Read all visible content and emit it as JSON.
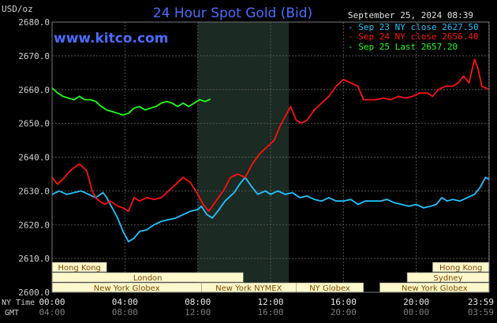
{
  "header": {
    "units": "USD/oz",
    "title": "24 Hour Spot Gold (Bid)",
    "timestamp": "September 25, 2024 08:39",
    "site": "www.kitco.com"
  },
  "colors": {
    "background": "#000000",
    "title": "#4a6cff",
    "site": "#4a6cff",
    "grid": "#555555",
    "shade": "#1b2a22",
    "axis_text": "#d0d0d0",
    "session_bar": "#fff8cc",
    "session_text": "#7a4a00",
    "series_sep23": "#22c3ff",
    "series_sep24": "#ff1010",
    "series_sep25": "#19ff19"
  },
  "footer": {
    "ny_time_label": "NY Time",
    "gmt_label": "GMT"
  },
  "chart_data": {
    "type": "line",
    "title": "24 Hour Spot Gold (Bid)",
    "ylabel": "USD/oz",
    "xlabel": "",
    "xlim": [
      0,
      24
    ],
    "ylim": [
      2600,
      2680
    ],
    "grid": true,
    "legend_position": "top-right",
    "shaded_interval": [
      8,
      13
    ],
    "y_ticks": [
      {
        "value": 2680,
        "label": "2680.0"
      },
      {
        "value": 2670,
        "label": "2670.0"
      },
      {
        "value": 2660,
        "label": "2660.0"
      },
      {
        "value": 2650,
        "label": "2650.0"
      },
      {
        "value": 2640,
        "label": "2640.0"
      },
      {
        "value": 2630,
        "label": "2630.0"
      },
      {
        "value": 2620,
        "label": "2620.0"
      },
      {
        "value": 2610,
        "label": "2610.0"
      },
      {
        "value": 2600,
        "label": "2600.0"
      }
    ],
    "x_ticks": [
      {
        "value": 0,
        "ny": "00:00",
        "gmt": "04:00"
      },
      {
        "value": 4,
        "ny": "04:00",
        "gmt": "08:00"
      },
      {
        "value": 8,
        "ny": "08:00",
        "gmt": "12:00"
      },
      {
        "value": 12,
        "ny": "12:00",
        "gmt": "16:00"
      },
      {
        "value": 16,
        "ny": "16:00",
        "gmt": "20:00"
      },
      {
        "value": 20,
        "ny": "20:00",
        "gmt": "00:00"
      },
      {
        "value": 23.98,
        "ny": "23:59",
        "gmt": "03:59"
      }
    ],
    "sessions": [
      {
        "label": "Hong Kong",
        "start": 0,
        "end": 3,
        "row": 0
      },
      {
        "label": "London",
        "start": 0,
        "end": 10.5,
        "row": 1
      },
      {
        "label": "New York Globex",
        "start": 0,
        "end": 8.2,
        "row": 2
      },
      {
        "label": "New York NYMEX",
        "start": 8.2,
        "end": 13.4,
        "row": 2
      },
      {
        "label": "NY Globex",
        "start": 13.4,
        "end": 17.1,
        "row": 2
      },
      {
        "label": "Hong Kong",
        "start": 20.9,
        "end": 24,
        "row": 0
      },
      {
        "label": "Sydney",
        "start": 19.5,
        "end": 24,
        "row": 1
      },
      {
        "label": "New York Globex",
        "start": 18,
        "end": 24,
        "row": 2
      }
    ],
    "series": [
      {
        "name": "Sep 23 NY close 2627.50",
        "color": "#22c3ff",
        "points": [
          [
            0,
            2629
          ],
          [
            0.4,
            2630
          ],
          [
            0.8,
            2629
          ],
          [
            1.2,
            2629.5
          ],
          [
            1.6,
            2630
          ],
          [
            2,
            2629
          ],
          [
            2.4,
            2628
          ],
          [
            2.8,
            2629.5
          ],
          [
            3,
            2628
          ],
          [
            3.3,
            2625
          ],
          [
            3.6,
            2622
          ],
          [
            3.9,
            2618
          ],
          [
            4.2,
            2615
          ],
          [
            4.5,
            2616
          ],
          [
            4.8,
            2618
          ],
          [
            5.2,
            2618.5
          ],
          [
            5.6,
            2620
          ],
          [
            6,
            2621
          ],
          [
            6.4,
            2621.5
          ],
          [
            6.8,
            2622
          ],
          [
            7.2,
            2623
          ],
          [
            7.6,
            2624
          ],
          [
            8,
            2624.5
          ],
          [
            8.2,
            2625.5
          ],
          [
            8.5,
            2623
          ],
          [
            8.8,
            2622
          ],
          [
            9.1,
            2624
          ],
          [
            9.5,
            2627
          ],
          [
            10,
            2629.5
          ],
          [
            10.3,
            2632
          ],
          [
            10.6,
            2634
          ],
          [
            11,
            2631
          ],
          [
            11.3,
            2629
          ],
          [
            11.7,
            2630
          ],
          [
            12,
            2629
          ],
          [
            12.4,
            2630
          ],
          [
            12.8,
            2629
          ],
          [
            13.2,
            2629.5
          ],
          [
            13.6,
            2628
          ],
          [
            14,
            2628.5
          ],
          [
            14.4,
            2627.5
          ],
          [
            14.8,
            2627
          ],
          [
            15.2,
            2628
          ],
          [
            15.6,
            2627
          ],
          [
            16,
            2627
          ],
          [
            16.4,
            2627.5
          ],
          [
            16.8,
            2626
          ],
          [
            17.2,
            2627
          ],
          [
            17.6,
            2627
          ],
          [
            18,
            2627
          ],
          [
            18.4,
            2627.5
          ],
          [
            18.8,
            2626.5
          ],
          [
            19.2,
            2626
          ],
          [
            19.6,
            2625.5
          ],
          [
            20,
            2626
          ],
          [
            20.4,
            2625
          ],
          [
            20.8,
            2625.5
          ],
          [
            21.1,
            2626
          ],
          [
            21.4,
            2628
          ],
          [
            21.7,
            2627
          ],
          [
            22,
            2627.5
          ],
          [
            22.4,
            2627
          ],
          [
            22.8,
            2628
          ],
          [
            23.2,
            2629
          ],
          [
            23.5,
            2631
          ],
          [
            23.8,
            2634
          ],
          [
            24,
            2633.5
          ]
        ]
      },
      {
        "name": "Sep 24 NY close 2656.40",
        "color": "#ff1010",
        "points": [
          [
            0,
            2634
          ],
          [
            0.3,
            2632
          ],
          [
            0.6,
            2633.5
          ],
          [
            1,
            2636
          ],
          [
            1.5,
            2638
          ],
          [
            1.9,
            2636
          ],
          [
            2.2,
            2630
          ],
          [
            2.4,
            2628
          ],
          [
            2.6,
            2627
          ],
          [
            2.9,
            2626
          ],
          [
            3.2,
            2627
          ],
          [
            3.6,
            2625.5
          ],
          [
            3.9,
            2625
          ],
          [
            4.2,
            2624
          ],
          [
            4.5,
            2628
          ],
          [
            4.8,
            2627
          ],
          [
            5.2,
            2628
          ],
          [
            5.6,
            2627.5
          ],
          [
            6,
            2628
          ],
          [
            6.4,
            2630
          ],
          [
            6.8,
            2632
          ],
          [
            7.2,
            2634
          ],
          [
            7.6,
            2632.5
          ],
          [
            8,
            2629
          ],
          [
            8.3,
            2626
          ],
          [
            8.6,
            2624
          ],
          [
            9,
            2627
          ],
          [
            9.4,
            2630
          ],
          [
            9.8,
            2634
          ],
          [
            10.2,
            2635
          ],
          [
            10.6,
            2634
          ],
          [
            11,
            2638
          ],
          [
            11.4,
            2641
          ],
          [
            11.8,
            2643
          ],
          [
            12.2,
            2645
          ],
          [
            12.5,
            2649
          ],
          [
            12.8,
            2652
          ],
          [
            13.1,
            2655
          ],
          [
            13.4,
            2651
          ],
          [
            13.7,
            2650
          ],
          [
            14,
            2651
          ],
          [
            14.4,
            2654
          ],
          [
            14.8,
            2656
          ],
          [
            15.2,
            2658
          ],
          [
            15.6,
            2661
          ],
          [
            16,
            2663
          ],
          [
            16.4,
            2662
          ],
          [
            16.8,
            2661
          ],
          [
            17.1,
            2657
          ],
          [
            17.4,
            2657
          ],
          [
            17.8,
            2657
          ],
          [
            18.2,
            2657.5
          ],
          [
            18.6,
            2657
          ],
          [
            19,
            2658
          ],
          [
            19.4,
            2657.5
          ],
          [
            19.8,
            2658
          ],
          [
            20.2,
            2659
          ],
          [
            20.6,
            2659
          ],
          [
            20.9,
            2658
          ],
          [
            21.2,
            2660
          ],
          [
            21.6,
            2661
          ],
          [
            22,
            2661
          ],
          [
            22.3,
            2662
          ],
          [
            22.6,
            2664
          ],
          [
            22.9,
            2662
          ],
          [
            23.2,
            2669
          ],
          [
            23.4,
            2666
          ],
          [
            23.6,
            2661
          ],
          [
            23.8,
            2660.5
          ],
          [
            24,
            2660
          ]
        ]
      },
      {
        "name": "Sep 25 Last 2657.20",
        "color": "#19ff19",
        "points": [
          [
            0,
            2660.5
          ],
          [
            0.3,
            2659
          ],
          [
            0.6,
            2658
          ],
          [
            0.9,
            2657.5
          ],
          [
            1.2,
            2657
          ],
          [
            1.5,
            2658
          ],
          [
            1.8,
            2657
          ],
          [
            2.1,
            2657
          ],
          [
            2.4,
            2656.5
          ],
          [
            2.7,
            2655
          ],
          [
            3,
            2654
          ],
          [
            3.3,
            2653.5
          ],
          [
            3.6,
            2653
          ],
          [
            3.9,
            2652.5
          ],
          [
            4.2,
            2653
          ],
          [
            4.5,
            2654.5
          ],
          [
            4.8,
            2655
          ],
          [
            5.1,
            2654
          ],
          [
            5.4,
            2654.5
          ],
          [
            5.7,
            2655
          ],
          [
            6,
            2656
          ],
          [
            6.3,
            2656.5
          ],
          [
            6.6,
            2656
          ],
          [
            6.9,
            2655
          ],
          [
            7.2,
            2656
          ],
          [
            7.5,
            2655
          ],
          [
            7.8,
            2656
          ],
          [
            8.1,
            2657
          ],
          [
            8.4,
            2656.5
          ],
          [
            8.7,
            2657.2
          ]
        ]
      }
    ]
  }
}
